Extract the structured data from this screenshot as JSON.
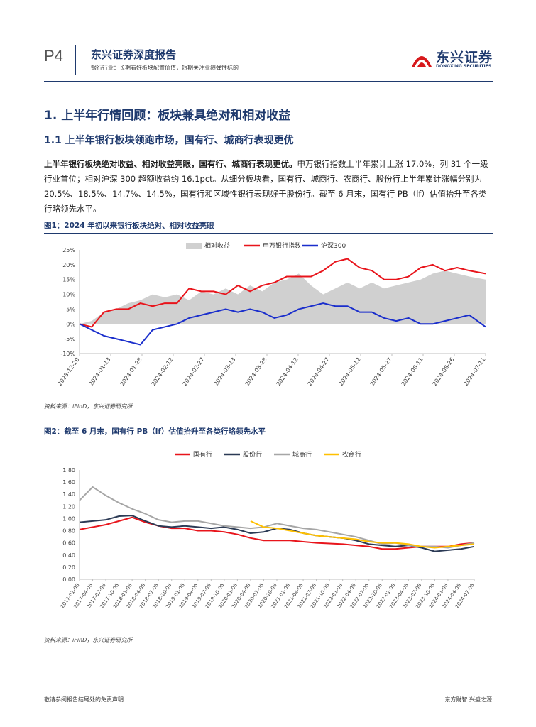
{
  "header": {
    "page_num": "P4",
    "report_title": "东兴证券深度报告",
    "report_subtitle": "银行行业：长期看好板块配置价值，短期关注业绩弹性标的",
    "logo_cn": "东兴证券",
    "logo_en": "DONGXING SECURITIES"
  },
  "section": {
    "h1": "1. 上半年行情回顾：板块兼具绝对和相对收益",
    "h2": "1.1 上半年银行板块领跑市场，国有行、城商行表现更优",
    "para_bold": "上半年银行板块绝对收益、相对收益亮眼，国有行、城商行表现更优。",
    "para_rest": "申万银行指数上半年累计上涨 17.0%，列 31 个一级行业首位；相对沪深 300 超额收益约 16.1pct。从细分板块看，国有行、城商行、农商行、股份行上半年累计涨幅分别为 20.5%、18.5%、14.7%、14.5%，国有行和区域性银行表现好于股份行。截至 6 月末，国有行 PB（lf）估值抬升至各类行略领先水平。"
  },
  "figure1": {
    "title": "图1：2024 年初以来银行板块绝对、相对收益亮眼",
    "source": "资料来源：iFinD，东兴证券研究所"
  },
  "figure2": {
    "title": "图2：截至 6 月末，国有行 PB（lf）估值抬升至各类行略领先水平",
    "source": "资料来源：iFinD，东兴证券研究所"
  },
  "footer": {
    "left": "敬请参阅报告结尾处的免责声明",
    "right": "东方财智  兴盛之源"
  },
  "chart_data": [
    {
      "type": "line",
      "legend_position": "top",
      "ylim": [
        -0.1,
        0.25
      ],
      "yticks": [
        "25%",
        "20%",
        "15%",
        "10%",
        "5%",
        "0%",
        "-5%",
        "-10%"
      ],
      "ytick_values": [
        0.25,
        0.2,
        0.15,
        0.1,
        0.05,
        0.0,
        -0.05,
        -0.1
      ],
      "xticks": [
        "2023-12-29",
        "2024-01-13",
        "2024-01-28",
        "2024-02-12",
        "2024-02-27",
        "2024-03-13",
        "2024-03-28",
        "2024-04-12",
        "2024-04-27",
        "2024-05-12",
        "2024-05-27",
        "2024-06-11",
        "2024-06-26",
        "2024-07-11"
      ],
      "x_index_range": [
        0,
        100
      ],
      "series": [
        {
          "name": "相对收益",
          "kind": "area",
          "color": "#d0d0d0",
          "x": [
            0,
            3,
            6,
            9,
            12,
            15,
            18,
            21,
            24,
            27,
            30,
            33,
            36,
            39,
            42,
            45,
            48,
            51,
            54,
            57,
            60,
            63,
            66,
            69,
            72,
            75,
            78,
            81,
            84,
            87,
            90,
            93,
            96,
            100
          ],
          "values": [
            0.0,
            0.01,
            0.04,
            0.05,
            0.07,
            0.08,
            0.1,
            0.09,
            0.1,
            0.08,
            0.11,
            0.1,
            0.12,
            0.1,
            0.13,
            0.11,
            0.14,
            0.15,
            0.17,
            0.13,
            0.1,
            0.12,
            0.14,
            0.12,
            0.14,
            0.12,
            0.13,
            0.14,
            0.15,
            0.17,
            0.18,
            0.17,
            0.16,
            0.15
          ]
        },
        {
          "name": "申万银行指数",
          "kind": "line",
          "color": "#e8141b",
          "x": [
            0,
            3,
            6,
            9,
            12,
            15,
            18,
            21,
            24,
            27,
            30,
            33,
            36,
            39,
            42,
            45,
            48,
            51,
            54,
            57,
            60,
            63,
            66,
            69,
            72,
            75,
            78,
            81,
            84,
            87,
            90,
            93,
            96,
            100
          ],
          "values": [
            0.0,
            -0.01,
            0.04,
            0.05,
            0.05,
            0.07,
            0.06,
            0.07,
            0.07,
            0.12,
            0.11,
            0.11,
            0.1,
            0.13,
            0.11,
            0.13,
            0.14,
            0.16,
            0.16,
            0.16,
            0.18,
            0.21,
            0.22,
            0.19,
            0.18,
            0.15,
            0.15,
            0.16,
            0.19,
            0.2,
            0.18,
            0.19,
            0.18,
            0.17
          ]
        },
        {
          "name": "沪深300",
          "kind": "line",
          "color": "#1a2ecc",
          "x": [
            0,
            3,
            6,
            9,
            12,
            15,
            18,
            21,
            24,
            27,
            30,
            33,
            36,
            39,
            42,
            45,
            48,
            51,
            54,
            57,
            60,
            63,
            66,
            69,
            72,
            75,
            78,
            81,
            84,
            87,
            90,
            93,
            96,
            100
          ],
          "values": [
            0.0,
            -0.02,
            -0.04,
            -0.05,
            -0.06,
            -0.07,
            -0.02,
            -0.01,
            0.0,
            0.02,
            0.03,
            0.04,
            0.05,
            0.04,
            0.05,
            0.04,
            0.02,
            0.03,
            0.05,
            0.06,
            0.07,
            0.06,
            0.06,
            0.04,
            0.04,
            0.02,
            0.01,
            0.02,
            0.0,
            0.0,
            0.01,
            0.02,
            0.03,
            -0.01
          ]
        }
      ]
    },
    {
      "type": "line",
      "legend_position": "top",
      "ylim": [
        0.0,
        1.8
      ],
      "yticks": [
        "1.80",
        "1.60",
        "1.40",
        "1.20",
        "1.00",
        "0.80",
        "0.60",
        "0.40",
        "0.20",
        "0.00"
      ],
      "ytick_values": [
        1.8,
        1.6,
        1.4,
        1.2,
        1.0,
        0.8,
        0.6,
        0.4,
        0.2,
        0.0
      ],
      "xticks": [
        "2017-01-06",
        "2017-04-06",
        "2017-07-06",
        "2017-10-06",
        "2018-01-06",
        "2018-04-06",
        "2018-07-06",
        "2018-10-06",
        "2019-01-06",
        "2019-04-06",
        "2019-07-06",
        "2019-10-06",
        "2020-01-06",
        "2020-04-06",
        "2020-07-06",
        "2020-10-06",
        "2021-01-06",
        "2021-04-06",
        "2021-07-06",
        "2021-10-06",
        "2022-01-06",
        "2022-04-06",
        "2022-07-06",
        "2022-10-06",
        "2023-01-06",
        "2023-04-06",
        "2023-07-06",
        "2023-10-06",
        "2024-01-06",
        "2024-04-06",
        "2024-07-06"
      ],
      "x_index_range": [
        0,
        30
      ],
      "series": [
        {
          "name": "国有行",
          "color": "#e8141b",
          "x": [
            0,
            1,
            2,
            3,
            4,
            5,
            6,
            7,
            8,
            9,
            10,
            11,
            12,
            13,
            14,
            15,
            16,
            17,
            18,
            19,
            20,
            21,
            22,
            23,
            24,
            25,
            26,
            27,
            28,
            29,
            30
          ],
          "values": [
            0.82,
            0.86,
            0.9,
            0.96,
            1.02,
            0.94,
            0.88,
            0.84,
            0.84,
            0.8,
            0.8,
            0.78,
            0.74,
            0.68,
            0.64,
            0.64,
            0.64,
            0.62,
            0.6,
            0.59,
            0.58,
            0.56,
            0.54,
            0.5,
            0.5,
            0.52,
            0.54,
            0.54,
            0.54,
            0.58,
            0.6
          ]
        },
        {
          "name": "股份行",
          "color": "#2b3a55",
          "x": [
            0,
            1,
            2,
            3,
            4,
            5,
            6,
            7,
            8,
            9,
            10,
            11,
            12,
            13,
            14,
            15,
            16,
            17,
            18,
            19,
            20,
            21,
            22,
            23,
            24,
            25,
            26,
            27,
            28,
            29,
            30
          ],
          "values": [
            0.94,
            0.96,
            0.98,
            1.04,
            1.05,
            0.96,
            0.88,
            0.86,
            0.88,
            0.86,
            0.84,
            0.86,
            0.82,
            0.76,
            0.78,
            0.84,
            0.82,
            0.76,
            0.72,
            0.7,
            0.68,
            0.64,
            0.58,
            0.56,
            0.54,
            0.56,
            0.52,
            0.46,
            0.48,
            0.5,
            0.54
          ]
        },
        {
          "name": "城商行",
          "color": "#a6a6a6",
          "x": [
            0,
            1,
            2,
            3,
            4,
            5,
            6,
            7,
            8,
            9,
            10,
            11,
            12,
            13,
            14,
            15,
            16,
            17,
            18,
            19,
            20,
            21,
            22,
            23,
            24,
            25,
            26,
            27,
            28,
            29,
            30
          ],
          "values": [
            1.3,
            1.52,
            1.38,
            1.26,
            1.16,
            1.08,
            0.98,
            0.94,
            0.96,
            0.96,
            0.92,
            0.88,
            0.86,
            0.84,
            0.86,
            0.92,
            0.88,
            0.84,
            0.82,
            0.78,
            0.74,
            0.7,
            0.64,
            0.58,
            0.6,
            0.56,
            0.54,
            0.54,
            0.52,
            0.56,
            0.6
          ]
        },
        {
          "name": "农商行",
          "color": "#ffc000",
          "x": [
            13,
            14,
            15,
            16,
            17,
            18,
            19,
            20,
            21,
            22,
            23,
            24,
            25,
            26,
            27,
            28,
            29,
            30
          ],
          "values": [
            0.96,
            0.86,
            0.84,
            0.8,
            0.76,
            0.72,
            0.7,
            0.68,
            0.66,
            0.62,
            0.6,
            0.6,
            0.58,
            0.54,
            0.52,
            0.54,
            0.56,
            0.58
          ]
        }
      ]
    }
  ]
}
